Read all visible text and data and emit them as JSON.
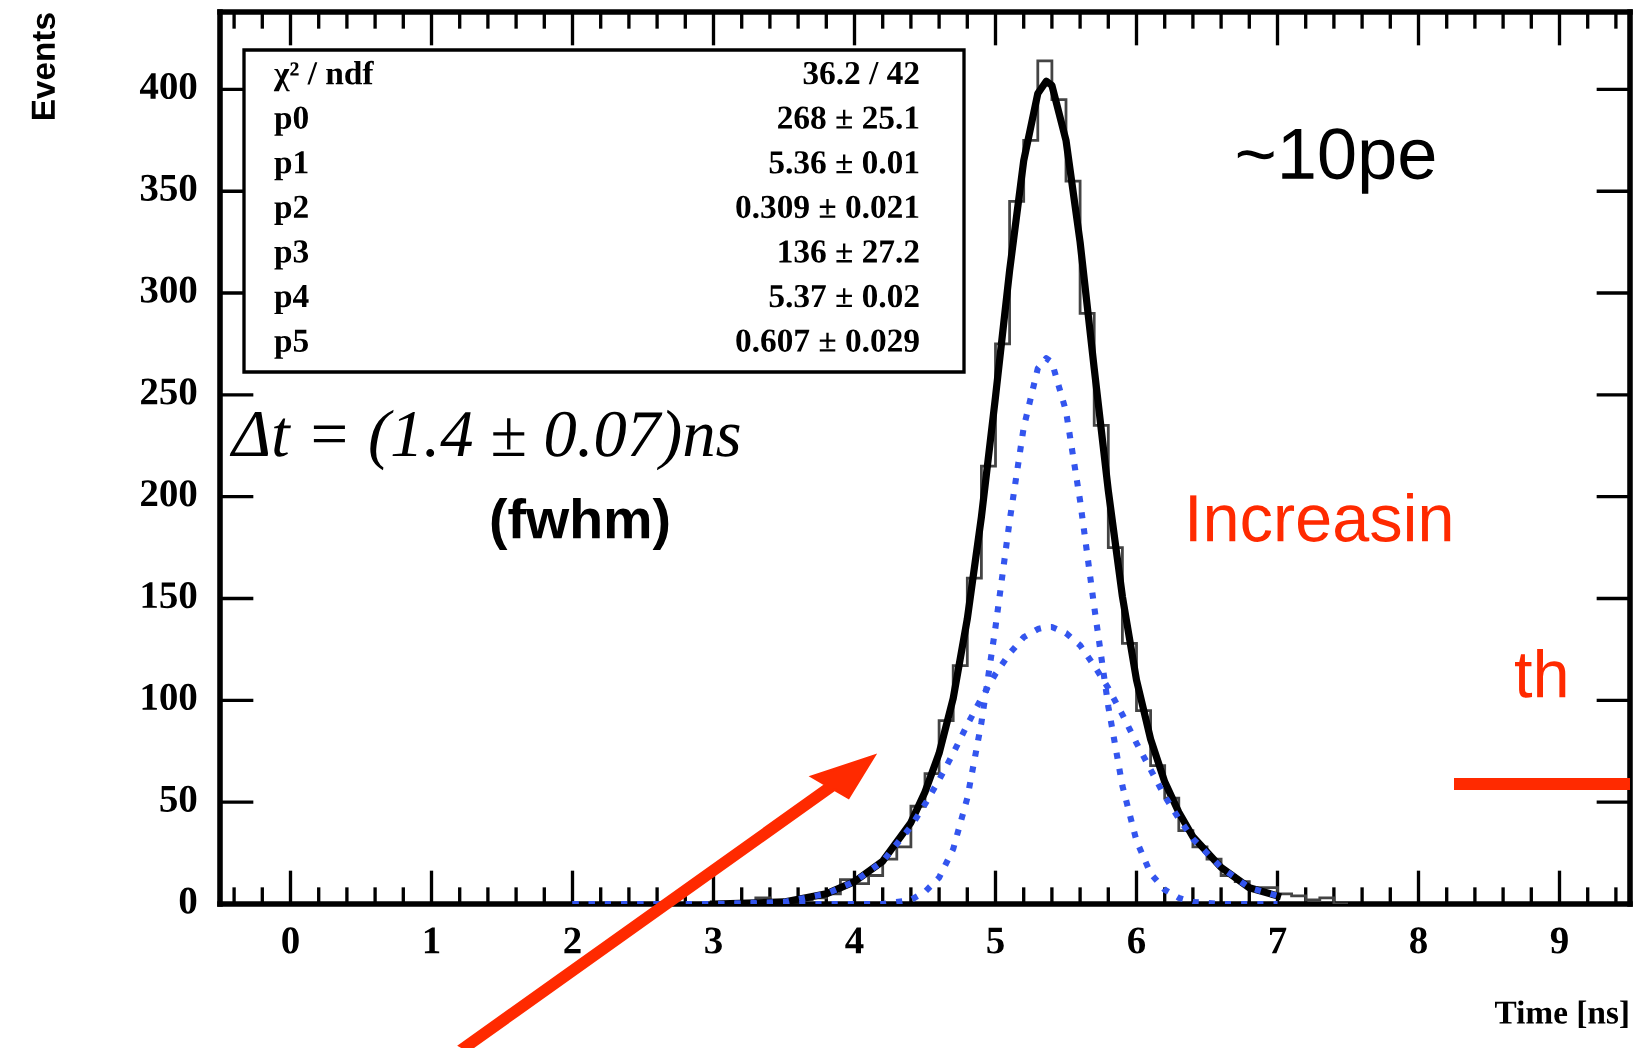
{
  "chart_data": {
    "type": "histogram",
    "xlabel": "Time [ns]",
    "ylabel": "Events",
    "bins": [
      3.0,
      3.1,
      3.2,
      3.3,
      3.4,
      3.5,
      3.6,
      3.7,
      3.8,
      3.9,
      4.0,
      4.1,
      4.2,
      4.3,
      4.4,
      4.5,
      4.6,
      4.7,
      4.8,
      4.9,
      5.0,
      5.1,
      5.2,
      5.3,
      5.4,
      5.5,
      5.6,
      5.7,
      5.8,
      5.9,
      6.0,
      6.1,
      6.2,
      6.3,
      6.4,
      6.5,
      6.6,
      6.7,
      6.8,
      6.9,
      7.0,
      7.1,
      7.2,
      7.3,
      7.4,
      7.5
    ],
    "values": [
      0,
      0,
      0,
      3,
      0,
      1,
      2,
      3,
      5,
      12,
      10,
      14,
      22,
      28,
      48,
      64,
      90,
      117,
      160,
      215,
      275,
      345,
      375,
      414,
      395,
      355,
      290,
      235,
      175,
      128,
      95,
      68,
      52,
      36,
      28,
      22,
      14,
      11,
      8,
      8,
      5,
      4,
      2,
      3,
      0
    ],
    "color": "#444444",
    "series": [
      {
        "type": "line",
        "color": "#000000",
        "line_style": "solid",
        "x": [
          3.0,
          3.5,
          3.8,
          4.0,
          4.2,
          4.4,
          4.5,
          4.6,
          4.7,
          4.8,
          4.9,
          5.0,
          5.1,
          5.2,
          5.3,
          5.36,
          5.4,
          5.5,
          5.6,
          5.7,
          5.8,
          5.9,
          6.0,
          6.1,
          6.2,
          6.3,
          6.4,
          6.6,
          6.8,
          7.0
        ],
        "values": [
          0,
          1,
          5,
          11,
          21,
          40,
          55,
          74,
          101,
          140,
          190,
          249,
          311,
          365,
          398,
          404,
          402,
          375,
          325,
          263,
          203,
          151,
          110,
          81,
          60,
          45,
          33,
          18,
          8,
          4
        ]
      },
      {
        "type": "line",
        "color": "#3355ee",
        "line_style": "dotted",
        "x": [
          2.0,
          2.5,
          3.0,
          3.5,
          3.8,
          4.0,
          4.2,
          4.4,
          4.5,
          4.6,
          4.7,
          4.8,
          4.9,
          5.0,
          5.1,
          5.2,
          5.3,
          5.36,
          5.4,
          5.5,
          5.6,
          5.7,
          5.8,
          5.9,
          6.0,
          6.1,
          6.2,
          6.3,
          6.4,
          6.6,
          6.8,
          7.0
        ],
        "values": [
          0,
          0,
          0,
          0,
          0,
          0,
          0,
          2,
          6,
          13,
          27,
          52,
          89,
          136,
          188,
          234,
          263,
          268,
          266,
          242,
          198,
          146,
          97,
          58,
          31,
          15,
          7,
          3,
          1,
          0,
          0,
          0
        ]
      },
      {
        "type": "line",
        "color": "#3355ee",
        "line_style": "dotted",
        "x": [
          2.0,
          2.5,
          3.0,
          3.5,
          3.8,
          4.0,
          4.2,
          4.4,
          4.5,
          4.6,
          4.7,
          4.8,
          4.9,
          5.0,
          5.1,
          5.2,
          5.3,
          5.36,
          5.4,
          5.5,
          5.6,
          5.7,
          5.8,
          5.9,
          6.0,
          6.1,
          6.2,
          6.3,
          6.4,
          6.6,
          6.8,
          7.0
        ],
        "values": [
          0,
          0,
          0,
          1,
          5,
          11,
          21,
          38,
          49,
          61,
          74,
          88,
          101,
          113,
          123,
          131,
          135,
          136,
          136,
          133,
          127,
          117,
          106,
          93,
          79,
          66,
          53,
          42,
          32,
          18,
          8,
          4
        ]
      }
    ],
    "xlim": [
      -0.5,
      9.5
    ],
    "ylim": [
      0,
      438
    ],
    "xticks": [
      0,
      1,
      2,
      3,
      4,
      5,
      6,
      7,
      8,
      9
    ],
    "yticks": [
      0,
      50,
      100,
      150,
      200,
      250,
      300,
      350,
      400
    ],
    "annotations": [
      "χ² / ndf",
      "36.2 / 42",
      "p0",
      "268 ± 25.1",
      "p1",
      "5.36 ± 0.01",
      "p2",
      "0.309 ± 0.021",
      "p3",
      "136 ± 27.2",
      "p4",
      "5.37 ± 0.02",
      "p5",
      "0.607 ± 0.029",
      "Δt = (1.4 ± 0.07)ns",
      "(fwhm)",
      "~10pe",
      "Increasin",
      "th"
    ]
  }
}
